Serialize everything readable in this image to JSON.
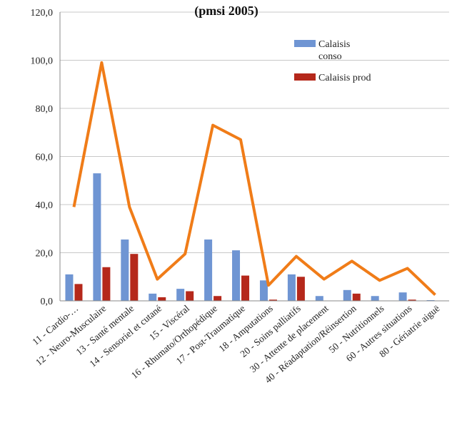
{
  "chart_data": {
    "type": "bar",
    "title": "(pmsi 2005)",
    "xlabel": "",
    "ylabel": "",
    "ylim": [
      0,
      120
    ],
    "yticks": [
      "0,0",
      "20,0",
      "40,0",
      "60,0",
      "80,0",
      "100,0",
      "120,0"
    ],
    "grid": true,
    "legend_position": "top-right",
    "categories": [
      "11 - Cardio-…",
      "12 - Neuro-Musculaire",
      "13 - Santé mentale",
      "14 - Sensoriel et cutané",
      "15 - Viscéral",
      "16 - Rhumato/Orthopédique",
      "17 - Post-Traumatique",
      "18 - Amputations",
      "20 - Soins palliatifs",
      "30 - Attente de placement",
      "40 - Réadaptation/Réinsertion",
      "50 - Nutritionnels",
      "60 - Autres situations",
      "80 - Gériatrie aiguë"
    ],
    "series": [
      {
        "name": "Calaisis conso",
        "type": "bar",
        "color": "#6f95d3",
        "values": [
          11.0,
          53.0,
          25.5,
          3.0,
          5.0,
          25.5,
          21.0,
          8.5,
          11.0,
          2.0,
          4.5,
          2.0,
          3.5,
          0.3
        ]
      },
      {
        "name": "Calaisis prod",
        "type": "bar",
        "color": "#b5281b",
        "values": [
          7.0,
          14.0,
          19.5,
          1.5,
          4.0,
          2.0,
          10.5,
          0.5,
          10.0,
          0.0,
          3.0,
          0.0,
          0.5,
          0.0
        ]
      },
      {
        "name": "",
        "type": "line",
        "color": "#f07c18",
        "values": [
          39.0,
          99.0,
          39.0,
          9.0,
          19.5,
          73.0,
          67.0,
          6.5,
          18.5,
          9.0,
          16.5,
          8.5,
          13.5,
          2.5
        ]
      }
    ],
    "legend": [
      {
        "lines": [
          "Calaisis",
          "conso"
        ],
        "color": "#6f95d3"
      },
      {
        "lines": [
          "Calaisis prod"
        ],
        "color": "#b5281b"
      }
    ]
  }
}
